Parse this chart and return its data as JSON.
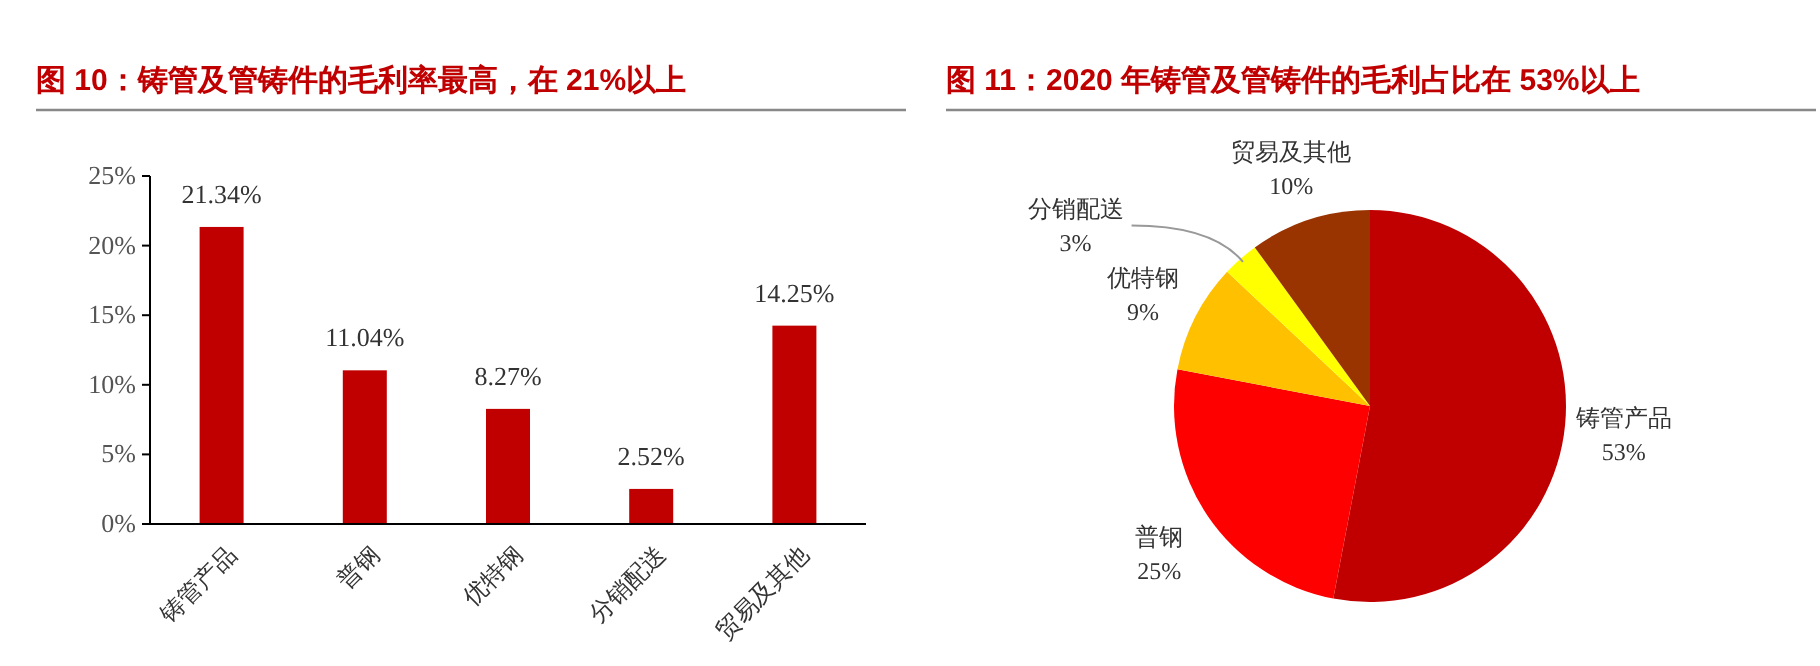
{
  "chart_data": [
    {
      "type": "bar",
      "title": "图 10：铸管及管铸件的毛利率最高，在 21%以上",
      "categories": [
        "铸管产品",
        "普钢",
        "优特钢",
        "分销配送",
        "贸易及其他"
      ],
      "values": [
        21.34,
        11.04,
        8.27,
        2.52,
        14.25
      ],
      "color": "#c00000",
      "value_labels": [
        "21.34%",
        "11.04%",
        "8.27%",
        "2.52%",
        "14.25%"
      ],
      "ylim": [
        0,
        25
      ],
      "yticks": [
        {
          "value": 0,
          "label": "0%"
        },
        {
          "value": 5,
          "label": "5%"
        },
        {
          "value": 10,
          "label": "10%"
        },
        {
          "value": 15,
          "label": "15%"
        },
        {
          "value": 20,
          "label": "20%"
        },
        {
          "value": 25,
          "label": "25%"
        }
      ],
      "grid": false
    },
    {
      "type": "pie",
      "title": "图 11：2020 年铸管及管铸件的毛利占比在 53%以上",
      "categories": [
        "铸管产品",
        "普钢",
        "优特钢",
        "分销配送",
        "贸易及其他"
      ],
      "values": [
        53,
        25,
        9,
        3,
        10
      ],
      "colors": [
        "#c00000",
        "#ff0000",
        "#ffc000",
        "#ffff00",
        "#993300"
      ],
      "value_labels": [
        "53%",
        "25%",
        "9%",
        "3%",
        "10%"
      ]
    }
  ]
}
